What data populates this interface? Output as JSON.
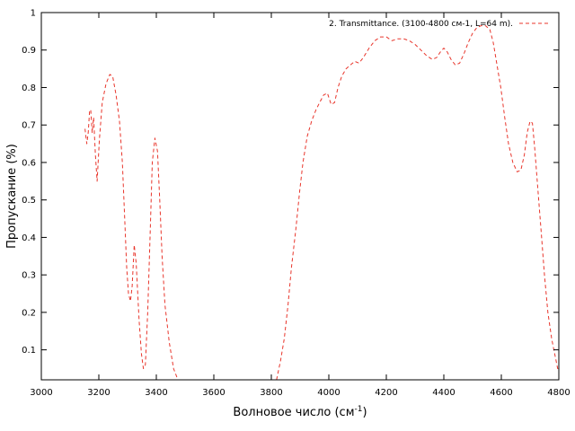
{
  "chart_data": {
    "type": "line",
    "xlabel": "Волновое число (см",
    "xlabel_sup": "-1",
    "xlabel_end": ")",
    "ylabel": "Пропускание (%)",
    "xlim": [
      3000,
      4800
    ],
    "ylim": [
      0.02,
      1.0
    ],
    "grid": false,
    "legend_position": "top-right",
    "x_ticks": [
      3000,
      3200,
      3400,
      3600,
      3800,
      4000,
      4200,
      4400,
      4600,
      4800
    ],
    "y_ticks": [
      0.1,
      0.2,
      0.3,
      0.4,
      0.5,
      0.6,
      0.7,
      0.8,
      0.9,
      1
    ],
    "series": [
      {
        "name": "2. Transmittance. (3100-4800 см-1, L=64 m).",
        "color": "#e8352b",
        "line_style": "dashed",
        "points": [
          [
            3152,
            0.69
          ],
          [
            3158,
            0.65
          ],
          [
            3163,
            0.68
          ],
          [
            3168,
            0.74
          ],
          [
            3172,
            0.74
          ],
          [
            3177,
            0.68
          ],
          [
            3182,
            0.72
          ],
          [
            3188,
            0.62
          ],
          [
            3194,
            0.55
          ],
          [
            3202,
            0.66
          ],
          [
            3212,
            0.76
          ],
          [
            3225,
            0.81
          ],
          [
            3238,
            0.835
          ],
          [
            3248,
            0.83
          ],
          [
            3260,
            0.78
          ],
          [
            3272,
            0.71
          ],
          [
            3282,
            0.6
          ],
          [
            3290,
            0.45
          ],
          [
            3297,
            0.32
          ],
          [
            3303,
            0.25
          ],
          [
            3310,
            0.23
          ],
          [
            3316,
            0.27
          ],
          [
            3323,
            0.38
          ],
          [
            3330,
            0.33
          ],
          [
            3340,
            0.18
          ],
          [
            3348,
            0.09
          ],
          [
            3355,
            0.05
          ],
          [
            3362,
            0.06
          ],
          [
            3370,
            0.2
          ],
          [
            3378,
            0.4
          ],
          [
            3386,
            0.6
          ],
          [
            3395,
            0.665
          ],
          [
            3404,
            0.63
          ],
          [
            3412,
            0.5
          ],
          [
            3420,
            0.35
          ],
          [
            3430,
            0.22
          ],
          [
            3445,
            0.12
          ],
          [
            3460,
            0.05
          ],
          [
            3475,
            0.02
          ],
          [
            3818,
            0.02
          ],
          [
            3832,
            0.07
          ],
          [
            3845,
            0.13
          ],
          [
            3858,
            0.22
          ],
          [
            3870,
            0.32
          ],
          [
            3885,
            0.42
          ],
          [
            3898,
            0.52
          ],
          [
            3910,
            0.6
          ],
          [
            3925,
            0.67
          ],
          [
            3940,
            0.71
          ],
          [
            3955,
            0.74
          ],
          [
            3968,
            0.76
          ],
          [
            3982,
            0.78
          ],
          [
            3995,
            0.785
          ],
          [
            4008,
            0.755
          ],
          [
            4020,
            0.76
          ],
          [
            4032,
            0.8
          ],
          [
            4045,
            0.83
          ],
          [
            4060,
            0.85
          ],
          [
            4075,
            0.86
          ],
          [
            4090,
            0.87
          ],
          [
            4105,
            0.865
          ],
          [
            4120,
            0.88
          ],
          [
            4140,
            0.905
          ],
          [
            4160,
            0.925
          ],
          [
            4180,
            0.935
          ],
          [
            4200,
            0.935
          ],
          [
            4220,
            0.925
          ],
          [
            4240,
            0.93
          ],
          [
            4260,
            0.93
          ],
          [
            4280,
            0.925
          ],
          [
            4300,
            0.915
          ],
          [
            4320,
            0.9
          ],
          [
            4340,
            0.885
          ],
          [
            4360,
            0.875
          ],
          [
            4375,
            0.88
          ],
          [
            4388,
            0.895
          ],
          [
            4400,
            0.905
          ],
          [
            4412,
            0.895
          ],
          [
            4425,
            0.875
          ],
          [
            4440,
            0.86
          ],
          [
            4455,
            0.865
          ],
          [
            4470,
            0.89
          ],
          [
            4485,
            0.92
          ],
          [
            4500,
            0.945
          ],
          [
            4515,
            0.96
          ],
          [
            4530,
            0.965
          ],
          [
            4545,
            0.965
          ],
          [
            4560,
            0.955
          ],
          [
            4572,
            0.92
          ],
          [
            4585,
            0.86
          ],
          [
            4598,
            0.8
          ],
          [
            4612,
            0.72
          ],
          [
            4625,
            0.65
          ],
          [
            4640,
            0.6
          ],
          [
            4655,
            0.575
          ],
          [
            4668,
            0.58
          ],
          [
            4680,
            0.62
          ],
          [
            4690,
            0.68
          ],
          [
            4700,
            0.71
          ],
          [
            4708,
            0.705
          ],
          [
            4716,
            0.64
          ],
          [
            4726,
            0.54
          ],
          [
            4738,
            0.42
          ],
          [
            4750,
            0.3
          ],
          [
            4762,
            0.2
          ],
          [
            4775,
            0.13
          ],
          [
            4788,
            0.08
          ],
          [
            4796,
            0.05
          ],
          [
            4800,
            0.05
          ]
        ]
      }
    ]
  }
}
